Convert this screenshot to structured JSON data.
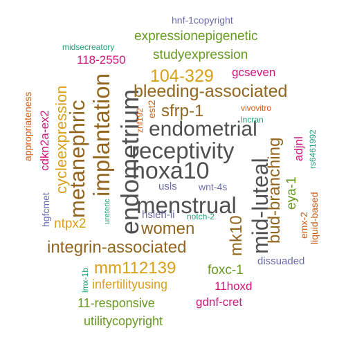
{
  "palette": {
    "grey": "#505050",
    "brown": "#93661f",
    "olive_green": "#669a21",
    "gold": "#d8a018",
    "magenta": "#d0157a",
    "slate_purple": "#6b6aa6",
    "teal": "#1f9c77",
    "orange_brown": "#cf5d16"
  },
  "words": [
    {
      "text": "endometrium",
      "color": "#505050"
    },
    {
      "text": "hoxa10",
      "color": "#505050"
    },
    {
      "text": "receptivity",
      "color": "#505050"
    },
    {
      "text": "menstrual",
      "color": "#505050"
    },
    {
      "text": "mid-luteal",
      "color": "#505050"
    },
    {
      "text": "endometrial",
      "color": "#505050"
    },
    {
      "text": "implantation",
      "color": "#93661f"
    },
    {
      "text": "metanephric",
      "color": "#93661f"
    },
    {
      "text": "bleeding-associated",
      "color": "#93661f"
    },
    {
      "text": "integrin-associated",
      "color": "#93661f"
    },
    {
      "text": "bud-branching",
      "color": "#93661f"
    },
    {
      "text": "sfrp-1",
      "color": "#93661f"
    },
    {
      "text": "women",
      "color": "#93661f"
    },
    {
      "text": "mk10",
      "color": "#93661f"
    },
    {
      "text": "104-329",
      "color": "#d8a018"
    },
    {
      "text": "mm112139",
      "color": "#d8a018"
    },
    {
      "text": "cycleexpression",
      "color": "#d8a018"
    },
    {
      "text": "ntpx2",
      "color": "#d8a018"
    },
    {
      "text": "infertilityusing",
      "color": "#d8a018"
    },
    {
      "text": "expressionepigenetic",
      "color": "#669a21"
    },
    {
      "text": "studyexpression",
      "color": "#669a21"
    },
    {
      "text": "foxc-1",
      "color": "#669a21"
    },
    {
      "text": "11-responsive",
      "color": "#669a21"
    },
    {
      "text": "utilitycopyright",
      "color": "#669a21"
    },
    {
      "text": "eya-1",
      "color": "#669a21"
    },
    {
      "text": "118-2550",
      "color": "#d0157a"
    },
    {
      "text": "gcseven",
      "color": "#d0157a"
    },
    {
      "text": "cdkn2a-ex2",
      "color": "#d0157a"
    },
    {
      "text": "adjnl",
      "color": "#d0157a"
    },
    {
      "text": "11hoxd",
      "color": "#d0157a"
    },
    {
      "text": "gdnf-cret",
      "color": "#d0157a"
    },
    {
      "text": "hnf-1copyright",
      "color": "#6b6aa6"
    },
    {
      "text": "hsieh-li",
      "color": "#6b6aa6"
    },
    {
      "text": "usls",
      "color": "#6b6aa6"
    },
    {
      "text": "wnt-4s",
      "color": "#6b6aa6"
    },
    {
      "text": "hgfcmet",
      "color": "#6b6aa6"
    },
    {
      "text": "dissuaded",
      "color": "#6b6aa6"
    },
    {
      "text": "midsecreatory",
      "color": "#1f9c77"
    },
    {
      "text": "lncran",
      "color": "#1f9c77"
    },
    {
      "text": "notch-2",
      "color": "#1f9c77"
    },
    {
      "text": "rs6461992",
      "color": "#1f9c77"
    },
    {
      "text": "ureteric",
      "color": "#1f9c77"
    },
    {
      "text": "lmx-1b",
      "color": "#1f9c77"
    },
    {
      "text": "appropriateness",
      "color": "#cf5d16"
    },
    {
      "text": "vivovitro",
      "color": "#cf5d16"
    },
    {
      "text": "est2",
      "color": "#cf5d16"
    },
    {
      "text": "znf192",
      "color": "#cf5d16"
    },
    {
      "text": "emx-2",
      "color": "#cf5d16"
    },
    {
      "text": "liquid-based",
      "color": "#cf5d16"
    }
  ]
}
